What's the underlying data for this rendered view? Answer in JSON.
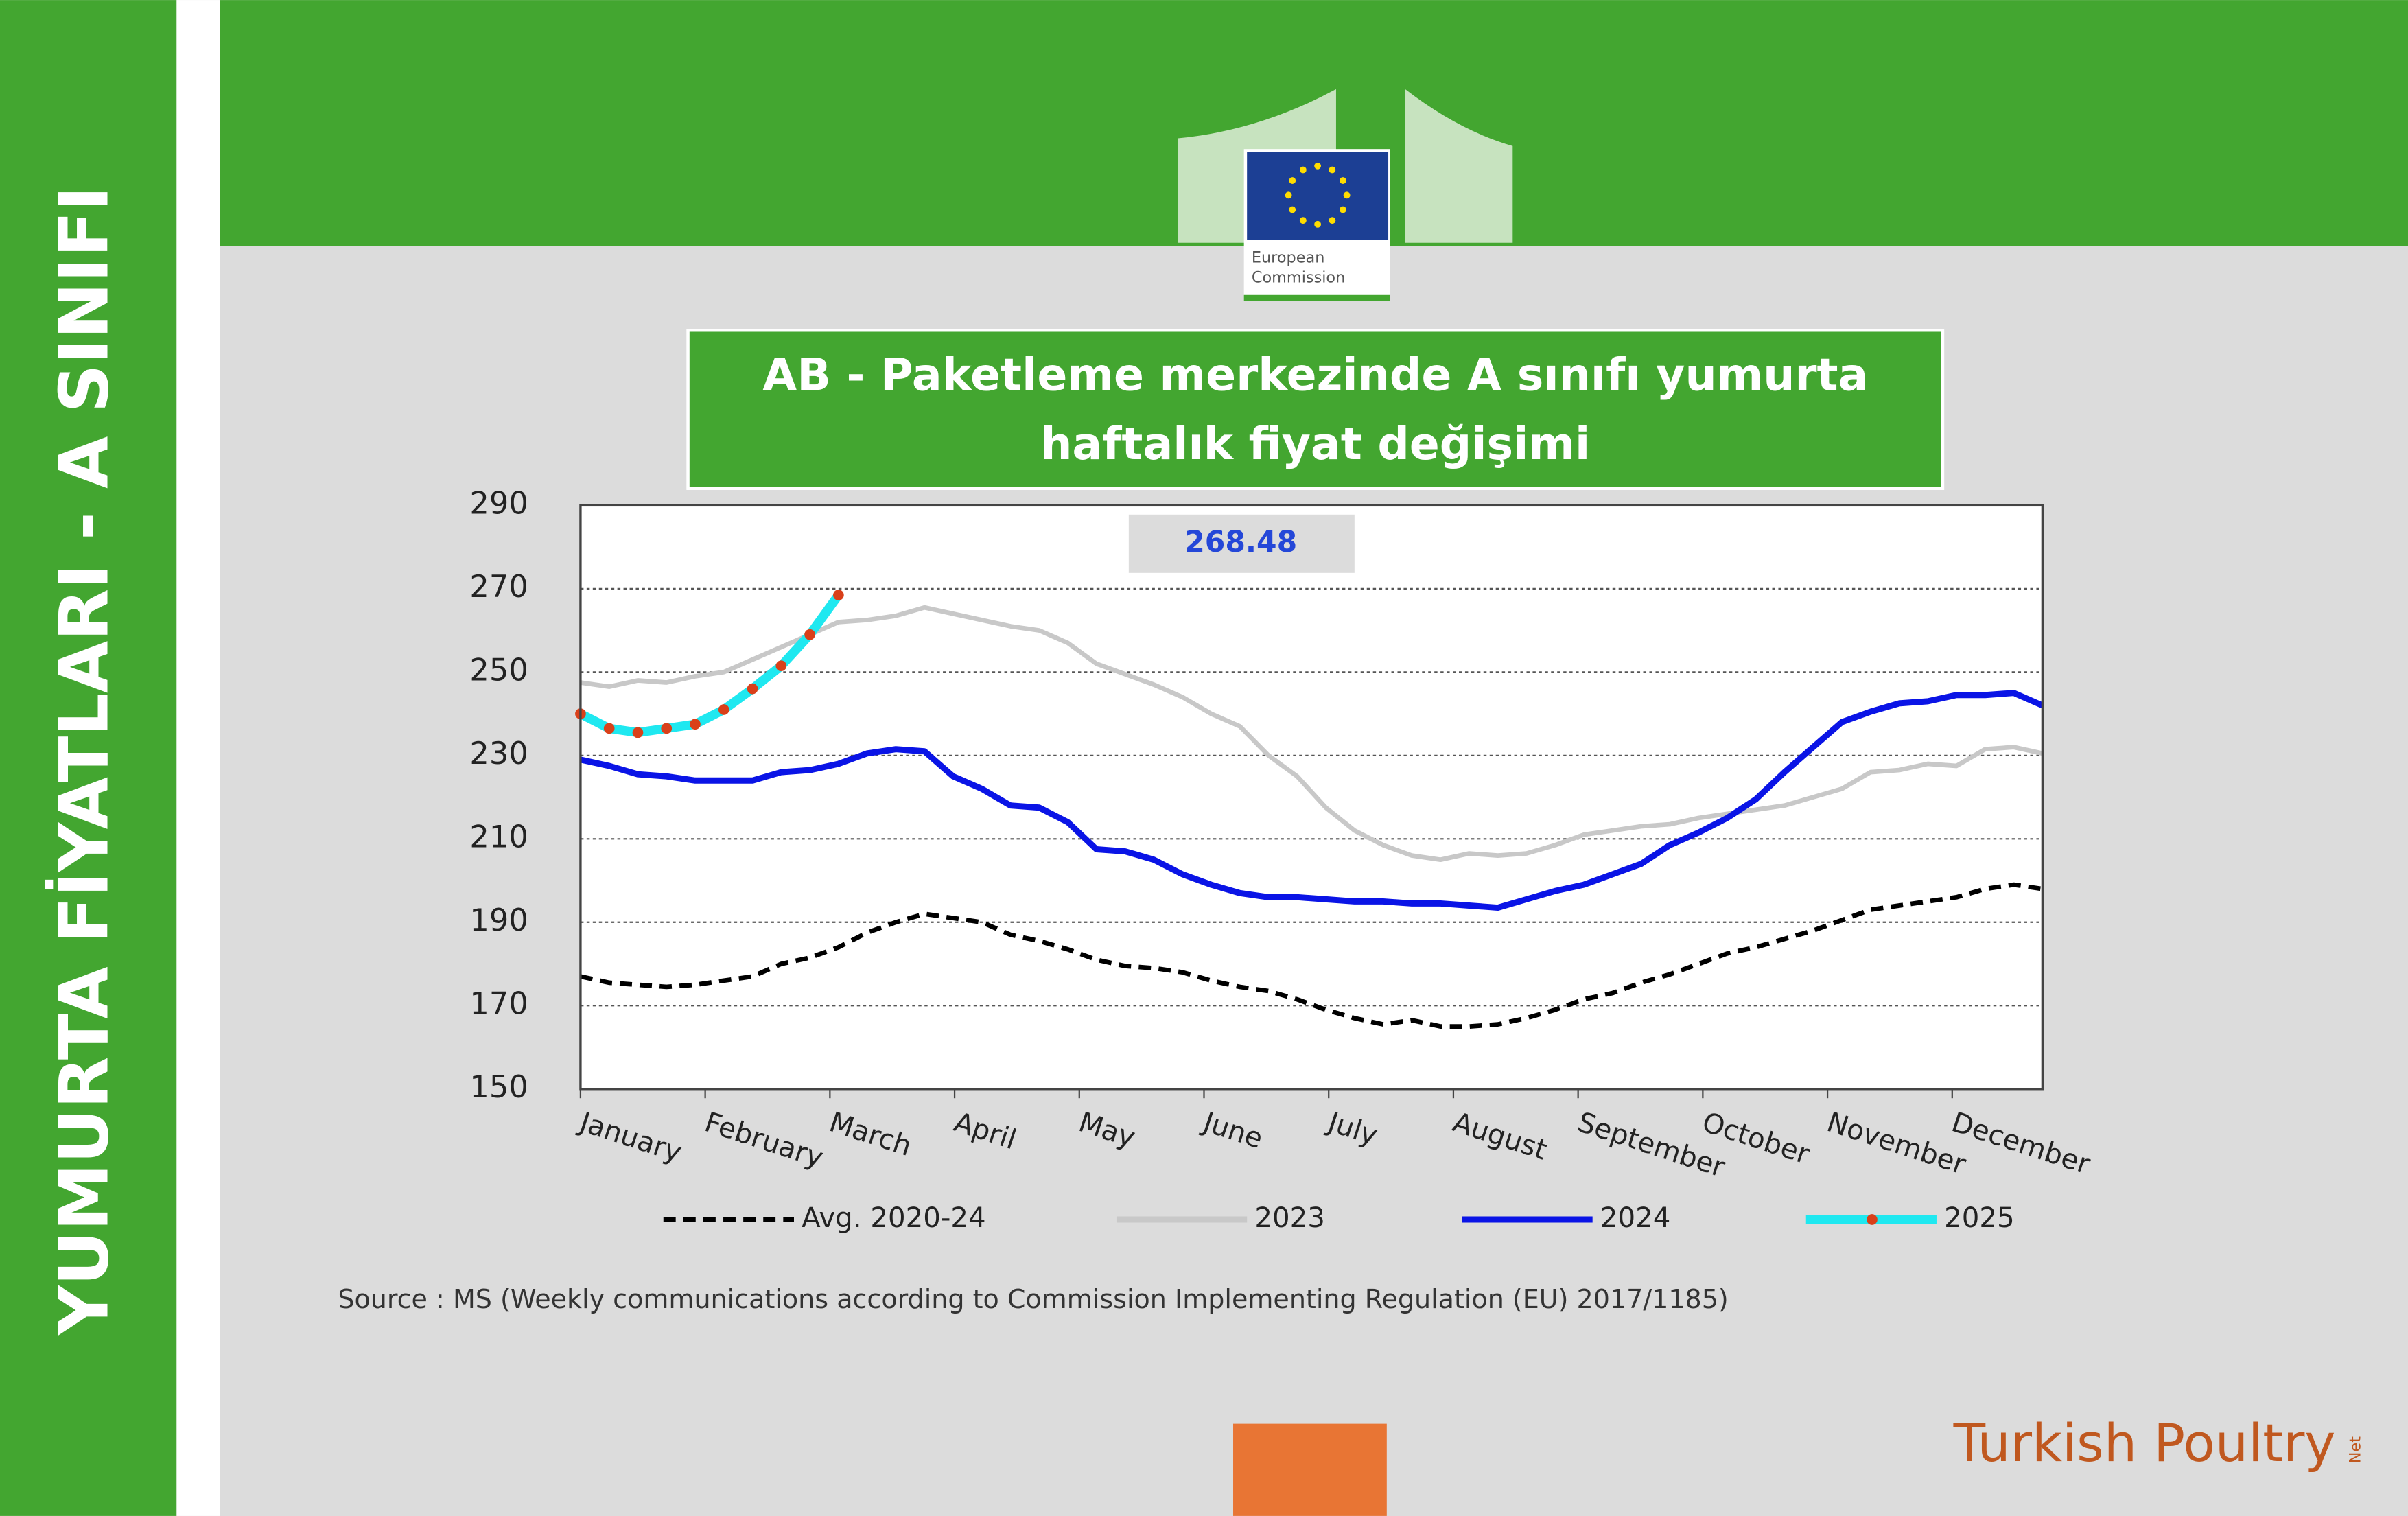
{
  "sidebar": "YUMURTA FİYATLARI - A SINIFI",
  "logo": {
    "line1": "European",
    "line2": "Commission"
  },
  "brand": {
    "name": "Turkish Poultry",
    "suffix": "Net"
  },
  "source": "Source : MS (Weekly communications according to Commission Implementing Regulation (EU) 2017/1185)",
  "chart_data": {
    "type": "line",
    "title": "AB - Paketleme merkezinde A sınıfı yumurta haftalık fiyat değişimi",
    "annotation": "268.48",
    "x": [
      1,
      2,
      3,
      4,
      5,
      6,
      7,
      8,
      9,
      10,
      11,
      12,
      13,
      14,
      15,
      16,
      17,
      18,
      19,
      20,
      21,
      22,
      23,
      24,
      25,
      26,
      27,
      28,
      29,
      30,
      31,
      32,
      33,
      34,
      35,
      36,
      37,
      38,
      39,
      40,
      41,
      42,
      43,
      44,
      45,
      46,
      47,
      48,
      49,
      50,
      51,
      52
    ],
    "xlim": [
      1,
      52
    ],
    "xticks": [
      {
        "value": 1,
        "label": "January"
      },
      {
        "value": 5.35,
        "label": "February"
      },
      {
        "value": 9.7,
        "label": "March"
      },
      {
        "value": 14.05,
        "label": "April"
      },
      {
        "value": 18.4,
        "label": "May"
      },
      {
        "value": 22.75,
        "label": "June"
      },
      {
        "value": 27.1,
        "label": "July"
      },
      {
        "value": 31.45,
        "label": "August"
      },
      {
        "value": 35.8,
        "label": "September"
      },
      {
        "value": 40.15,
        "label": "October"
      },
      {
        "value": 44.5,
        "label": "November"
      },
      {
        "value": 48.85,
        "label": "December"
      }
    ],
    "ylim": [
      150,
      290
    ],
    "yticks": [
      150,
      170,
      190,
      210,
      230,
      250,
      270,
      290
    ],
    "grid": true,
    "series": [
      {
        "name": "Avg. 2020-24",
        "color": "#000000",
        "dash": "dashed",
        "values": [
          177,
          175.5,
          175,
          174.5,
          175,
          176,
          177,
          180,
          181.5,
          184,
          187.5,
          190,
          192,
          191,
          190,
          187,
          185.5,
          183.5,
          181,
          179.5,
          179,
          178,
          176,
          174.5,
          173.5,
          171.5,
          169,
          167,
          165.5,
          166.5,
          165,
          165,
          165.5,
          167,
          169,
          171.5,
          173,
          175.5,
          177.5,
          180,
          182.5,
          184,
          186,
          188,
          190.5,
          193,
          194,
          195,
          196,
          198,
          199,
          198
        ]
      },
      {
        "name": "2023",
        "color": "#c8c8c8",
        "dash": "solid",
        "values": [
          247.5,
          246.5,
          248,
          247.5,
          249,
          250,
          253,
          256,
          259,
          262,
          262.5,
          263.5,
          265.5,
          264,
          262.5,
          261,
          260,
          257,
          252,
          249.5,
          247,
          244,
          240,
          237,
          230,
          225,
          217.5,
          212,
          208.5,
          206,
          205,
          206.5,
          206,
          206.5,
          208.5,
          211,
          212,
          213,
          213.5,
          215,
          216,
          217,
          218,
          220,
          222,
          226,
          226.5,
          228,
          227.5,
          231.5,
          232,
          230.5
        ]
      },
      {
        "name": "2024",
        "color": "#0a14e6",
        "dash": "solid",
        "values": [
          229,
          227.5,
          225.5,
          225,
          224,
          224,
          224,
          226,
          226.5,
          228,
          230.5,
          231.5,
          231,
          225,
          222,
          218,
          217.5,
          214,
          207.5,
          207,
          205,
          201.5,
          199,
          197,
          196,
          196,
          195.5,
          195,
          195,
          194.5,
          194.5,
          194,
          193.5,
          195.5,
          197.5,
          199,
          201.5,
          204,
          208.5,
          211.5,
          215,
          219.5,
          226,
          232,
          238,
          240.5,
          242.5,
          243,
          244.5,
          244.5,
          245,
          242
        ]
      },
      {
        "name": "2025",
        "color": "#1fe8f0",
        "dash": "solid",
        "marker_color": "#d9401a",
        "values": [
          240,
          236.5,
          235.5,
          236.5,
          237.5,
          241,
          246,
          251.5,
          259,
          268.48,
          null,
          null,
          null,
          null,
          null,
          null,
          null,
          null,
          null,
          null,
          null,
          null,
          null,
          null,
          null,
          null,
          null,
          null,
          null,
          null,
          null,
          null,
          null,
          null,
          null,
          null,
          null,
          null,
          null,
          null,
          null,
          null,
          null,
          null,
          null,
          null,
          null,
          null,
          null,
          null,
          null,
          null
        ]
      }
    ]
  }
}
